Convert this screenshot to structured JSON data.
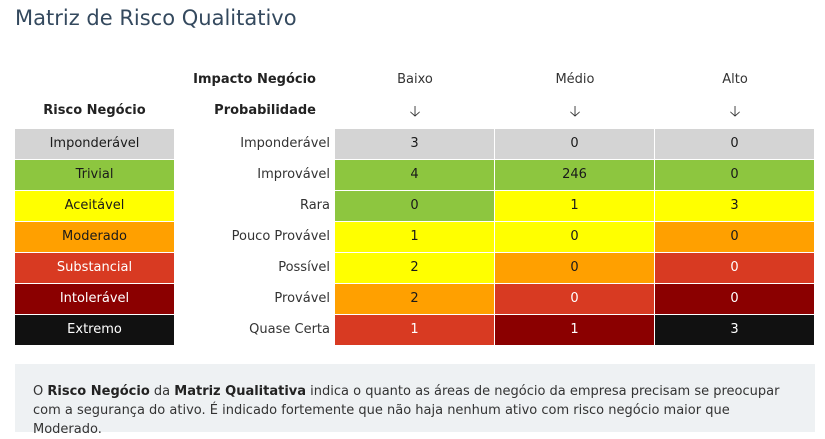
{
  "title": "Matriz de Risco Qualitativo",
  "colors": {
    "gray": "#d4d4d4",
    "green": "#8dc63f",
    "yellow": "#ffff00",
    "orange": "#ffa000",
    "red": "#d83a22",
    "darkred": "#8b0000",
    "black": "#111111"
  },
  "headers": {
    "impact": "Impacto Negócio",
    "probability": "Probabilidade",
    "risk": "Risco Negócio",
    "columns": [
      "Baixo",
      "Médio",
      "Alto"
    ],
    "arrow": "🡣"
  },
  "legend": [
    {
      "label": "Imponderável",
      "color": "gray",
      "dark": false
    },
    {
      "label": "Trivial",
      "color": "green",
      "dark": false
    },
    {
      "label": "Aceitável",
      "color": "yellow",
      "dark": false
    },
    {
      "label": "Moderado",
      "color": "orange",
      "dark": false
    },
    {
      "label": "Substancial",
      "color": "red",
      "dark": true
    },
    {
      "label": "Intolerável",
      "color": "darkred",
      "dark": true
    },
    {
      "label": "Extremo",
      "color": "black",
      "dark": true
    }
  ],
  "rows": [
    {
      "label": "Imponderável",
      "cells": [
        {
          "v": "3",
          "c": "gray"
        },
        {
          "v": "0",
          "c": "gray"
        },
        {
          "v": "0",
          "c": "gray"
        }
      ]
    },
    {
      "label": "Improvável",
      "cells": [
        {
          "v": "4",
          "c": "green"
        },
        {
          "v": "246",
          "c": "green"
        },
        {
          "v": "0",
          "c": "green"
        }
      ]
    },
    {
      "label": "Rara",
      "cells": [
        {
          "v": "0",
          "c": "green"
        },
        {
          "v": "1",
          "c": "yellow"
        },
        {
          "v": "3",
          "c": "yellow"
        }
      ]
    },
    {
      "label": "Pouco Provável",
      "cells": [
        {
          "v": "1",
          "c": "yellow"
        },
        {
          "v": "0",
          "c": "yellow"
        },
        {
          "v": "0",
          "c": "orange"
        }
      ]
    },
    {
      "label": "Possível",
      "cells": [
        {
          "v": "2",
          "c": "yellow"
        },
        {
          "v": "0",
          "c": "orange"
        },
        {
          "v": "0",
          "c": "red"
        }
      ]
    },
    {
      "label": "Provável",
      "cells": [
        {
          "v": "2",
          "c": "orange"
        },
        {
          "v": "0",
          "c": "red"
        },
        {
          "v": "0",
          "c": "darkred"
        }
      ]
    },
    {
      "label": "Quase Certa",
      "cells": [
        {
          "v": "1",
          "c": "red"
        },
        {
          "v": "1",
          "c": "darkred"
        },
        {
          "v": "3",
          "c": "black"
        }
      ]
    }
  ],
  "note": {
    "t1": "O ",
    "b1": "Risco Negócio",
    "t2": " da ",
    "b2": "Matriz Qualitativa",
    "t3": " indica o quanto as áreas de negócio da empresa precisam se preocupar com a segurança do ativo. É indicado fortemente que não haja nenhum ativo com risco negócio maior que Moderado."
  }
}
